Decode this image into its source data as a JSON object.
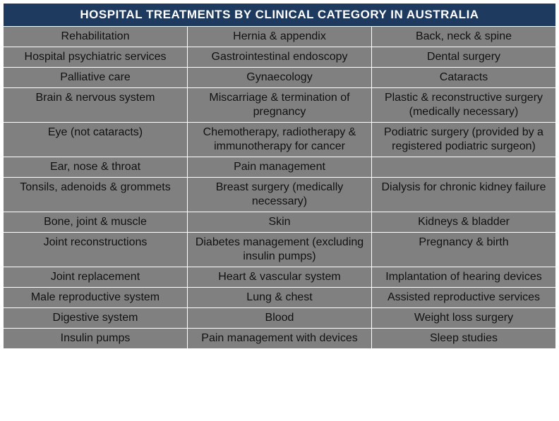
{
  "table": {
    "type": "table",
    "title": "HOSPITAL TREATMENTS BY CLINICAL CATEGORY IN AUSTRALIA",
    "header_bg": "#1f3a5f",
    "header_fg": "#ffffff",
    "cell_bg": "#808080",
    "cell_fg": "#111111",
    "border_color": "#ffffff",
    "border_width": 1,
    "columns": 3,
    "rows": [
      [
        "Rehabilitation",
        "Hernia & appendix",
        "Back, neck & spine"
      ],
      [
        "Hospital psychiatric services",
        "Gastrointestinal endoscopy",
        "Dental surgery"
      ],
      [
        "Palliative care",
        "Gynaecology",
        "Cataracts"
      ],
      [
        "Brain & nervous system",
        "Miscarriage & termination of pregnancy",
        "Plastic & reconstructive surgery (medically necessary)"
      ],
      [
        "Eye (not cataracts)",
        "Chemotherapy, radiotherapy & immunotherapy for cancer",
        "Podiatric surgery (provided by a registered podiatric surgeon)"
      ],
      [
        "Ear, nose & throat",
        "Pain management",
        ""
      ],
      [
        "Tonsils, adenoids & grommets",
        "Breast surgery (medically necessary)",
        "Dialysis for chronic kidney failure"
      ],
      [
        "Bone, joint & muscle",
        "Skin",
        "Kidneys & bladder"
      ],
      [
        "Joint reconstructions",
        "Diabetes management (excluding insulin pumps)",
        "Pregnancy & birth"
      ],
      [
        "Joint replacement",
        "Heart & vascular system",
        "Implantation of hearing devices"
      ],
      [
        "Male reproductive system",
        "Lung & chest",
        "Assisted reproductive services"
      ],
      [
        "Digestive system",
        "Blood",
        "Weight loss surgery"
      ],
      [
        "Insulin pumps",
        "Pain management with devices",
        "Sleep studies"
      ]
    ]
  }
}
